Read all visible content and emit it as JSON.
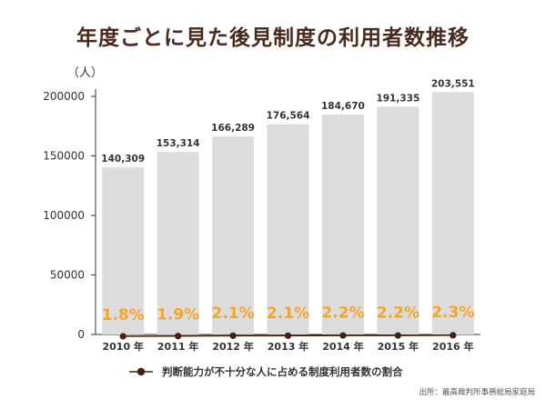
{
  "title": "年度ごとに見た後見制度の利用者数推移",
  "source": "出所：最高裁判所事務総局家庭局",
  "colors": {
    "title": "#4a2a1c",
    "bar": "#dcdcdc",
    "line": "#4a1e12",
    "percent": "#f5a623",
    "axis": "#333333"
  },
  "chart_data": {
    "type": "bar",
    "unit_label": "（人）",
    "categories": [
      "2010 年",
      "2011 年",
      "2012 年",
      "2013 年",
      "2014 年",
      "2015 年",
      "2016 年"
    ],
    "values": [
      140309,
      153314,
      166289,
      176564,
      184670,
      191335,
      203551
    ],
    "value_labels": [
      "140,309",
      "153,314",
      "166,289",
      "176,564",
      "184,670",
      "191,335",
      "203,551"
    ],
    "ylim": [
      0,
      200000
    ],
    "yticks": [
      0,
      50000,
      100000,
      150000,
      200000
    ],
    "ytick_labels": [
      "0",
      "50000",
      "100000",
      "150000",
      "200000"
    ],
    "grid": false,
    "line_series": {
      "name": "判断能力が不十分な人に占める制度利用者数の割合",
      "values": [
        1.8,
        1.9,
        2.1,
        2.1,
        2.2,
        2.2,
        2.3
      ],
      "labels": [
        "1.8%",
        "1.9%",
        "2.1%",
        "2.1%",
        "2.2%",
        "2.2%",
        "2.3%"
      ],
      "marker": "circle"
    },
    "legend_placement": "bottom-center"
  }
}
